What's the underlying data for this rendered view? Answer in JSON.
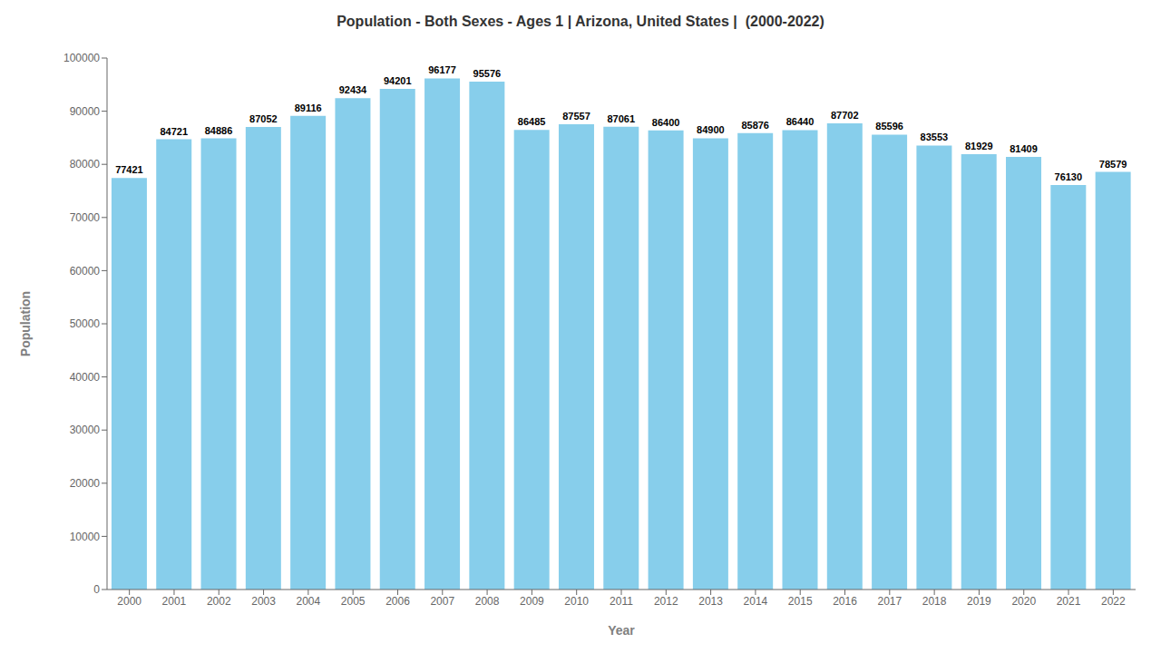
{
  "chart_data": {
    "type": "bar",
    "title": "Population - Both Sexes - Ages 1 | Arizona, United States |  (2000-2022)",
    "xlabel": "Year",
    "ylabel": "Population",
    "categories": [
      "2000",
      "2001",
      "2002",
      "2003",
      "2004",
      "2005",
      "2006",
      "2007",
      "2008",
      "2009",
      "2010",
      "2011",
      "2012",
      "2013",
      "2014",
      "2015",
      "2016",
      "2017",
      "2018",
      "2019",
      "2020",
      "2021",
      "2022"
    ],
    "values": [
      77421,
      84721,
      84886,
      87052,
      89116,
      92434,
      94201,
      96177,
      95576,
      86485,
      87557,
      87061,
      86400,
      84900,
      85876,
      86440,
      87702,
      85596,
      83553,
      81929,
      81409,
      76130,
      78579
    ],
    "color": "#87ceeb",
    "ylim": [
      0,
      100000
    ],
    "yticks": [
      0,
      10000,
      20000,
      30000,
      40000,
      50000,
      60000,
      70000,
      80000,
      90000,
      100000
    ],
    "grid": false,
    "data_labels": true
  }
}
